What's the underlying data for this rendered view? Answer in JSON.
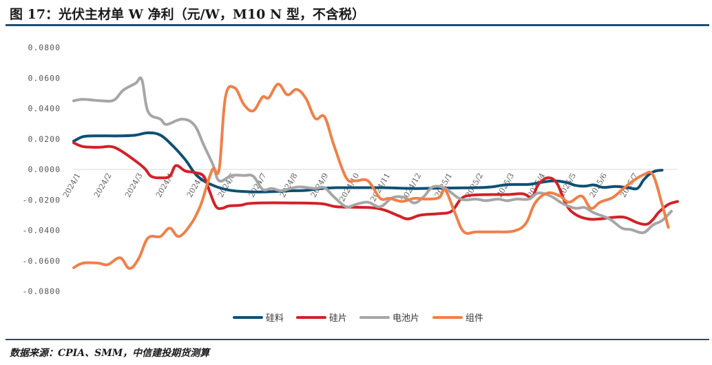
{
  "header": {
    "title": "图 17：光伏主材单 W 净利（元/W，M10 N 型，不含税）"
  },
  "footer": {
    "source": "数据来源：CPIA、SMM，中信建投期货测算"
  },
  "colors": {
    "硅料": "#0f5075",
    "硅片": "#d42027",
    "电池片": "#a6a6a6",
    "组件": "#f08048",
    "rule": "#1f4e79"
  },
  "chart_data": {
    "type": "line",
    "title": "",
    "xlabel": "",
    "ylabel": "",
    "ylim": [
      -0.08,
      0.08
    ],
    "y_ticks": [
      "0.0800",
      "0.0600",
      "0.0400",
      "0.0200",
      "0.0000",
      "-0.0200",
      "-0.0400",
      "-0.0600",
      "-0.0800"
    ],
    "x_ticks": [
      "2024/1",
      "2024/2",
      "2024/3",
      "2024/4",
      "2024/5",
      "2024/6",
      "2024/7",
      "2024/8",
      "2024/9",
      "2024/10",
      "2024/11",
      "2024/12",
      "2025/1",
      "2025/2",
      "2025/3",
      "2025/4",
      "2025/5",
      "2025/6",
      "2025/7"
    ],
    "x_tick_labels": [
      "2024/1",
      "2024/2",
      "2024/3",
      "2024/4",
      "2024/5",
      "2024/6",
      "2024/7",
      "2024/8",
      "2024/9",
      "2024/10",
      "2024/11",
      "2024/12",
      "2025/1",
      "2025/2",
      "2025/3",
      "2025/4",
      "2025/5",
      "2025/6",
      "2025/7"
    ],
    "x_range_months": [
      0,
      18.8
    ],
    "legend_position": "bottom",
    "grid": false,
    "series": [
      {
        "name": "硅料",
        "points": [
          [
            0,
            0.0185
          ],
          [
            0.3,
            0.0215
          ],
          [
            0.7,
            0.022
          ],
          [
            1.5,
            0.022
          ],
          [
            2.0,
            0.0225
          ],
          [
            2.4,
            0.024
          ],
          [
            2.8,
            0.0225
          ],
          [
            3.2,
            0.0155
          ],
          [
            3.6,
            0.0065
          ],
          [
            4.0,
            -0.0045
          ],
          [
            4.5,
            -0.0105
          ],
          [
            5.0,
            -0.0135
          ],
          [
            5.5,
            -0.0145
          ],
          [
            6.0,
            -0.0148
          ],
          [
            6.5,
            -0.0145
          ],
          [
            7.0,
            -0.014
          ],
          [
            7.5,
            -0.0138
          ],
          [
            8.0,
            -0.0125
          ],
          [
            8.5,
            -0.012
          ],
          [
            9.0,
            -0.012
          ],
          [
            10.0,
            -0.012
          ],
          [
            11.0,
            -0.0125
          ],
          [
            12.0,
            -0.0122
          ],
          [
            13.0,
            -0.012
          ],
          [
            13.5,
            -0.0115
          ],
          [
            14.0,
            -0.01
          ],
          [
            14.7,
            -0.0098
          ],
          [
            15.1,
            -0.0085
          ],
          [
            15.5,
            -0.0075
          ],
          [
            15.9,
            -0.0085
          ],
          [
            16.2,
            -0.0105
          ],
          [
            16.5,
            -0.011
          ],
          [
            16.8,
            -0.0102
          ],
          [
            17.1,
            -0.0118
          ],
          [
            17.5,
            -0.0112
          ],
          [
            17.9,
            -0.012
          ],
          [
            18.2,
            -0.0125
          ],
          [
            18.4,
            -0.007
          ],
          [
            18.6,
            -0.003
          ],
          [
            18.8,
            -0.001
          ],
          [
            19.0,
            -0.0005
          ]
        ]
      },
      {
        "name": "硅片",
        "points": [
          [
            0,
            0.0175
          ],
          [
            0.3,
            0.015
          ],
          [
            0.8,
            0.0145
          ],
          [
            1.2,
            0.015
          ],
          [
            1.5,
            0.0125
          ],
          [
            2.0,
            0.0055
          ],
          [
            2.3,
            0.0005
          ],
          [
            2.5,
            -0.0045
          ],
          [
            2.8,
            -0.0055
          ],
          [
            3.1,
            -0.0045
          ],
          [
            3.3,
            0.0025
          ],
          [
            3.6,
            -0.001
          ],
          [
            3.9,
            -0.002
          ],
          [
            4.2,
            -0.0045
          ],
          [
            4.4,
            -0.015
          ],
          [
            4.6,
            -0.0245
          ],
          [
            4.8,
            -0.0255
          ],
          [
            5.0,
            -0.024
          ],
          [
            5.4,
            -0.0235
          ],
          [
            5.6,
            -0.0225
          ],
          [
            6.0,
            -0.022
          ],
          [
            7.0,
            -0.022
          ],
          [
            8.0,
            -0.0225
          ],
          [
            8.5,
            -0.0245
          ],
          [
            9.5,
            -0.025
          ],
          [
            10.0,
            -0.0265
          ],
          [
            10.5,
            -0.0305
          ],
          [
            10.8,
            -0.0325
          ],
          [
            11.2,
            -0.03
          ],
          [
            11.8,
            -0.029
          ],
          [
            12.2,
            -0.0275
          ],
          [
            12.5,
            -0.0195
          ],
          [
            12.8,
            -0.017
          ],
          [
            13.5,
            -0.0165
          ],
          [
            14.0,
            -0.0165
          ],
          [
            14.5,
            -0.016
          ],
          [
            14.8,
            -0.018
          ],
          [
            15.0,
            -0.01
          ],
          [
            15.3,
            -0.0055
          ],
          [
            15.6,
            -0.009
          ],
          [
            15.9,
            -0.023
          ],
          [
            16.2,
            -0.0295
          ],
          [
            16.6,
            -0.0325
          ],
          [
            17.0,
            -0.0325
          ],
          [
            17.4,
            -0.0315
          ],
          [
            17.8,
            -0.0315
          ],
          [
            18.2,
            -0.035
          ],
          [
            18.5,
            -0.036
          ],
          [
            18.7,
            -0.033
          ],
          [
            18.9,
            -0.028
          ],
          [
            19.2,
            -0.023
          ],
          [
            19.5,
            -0.021
          ]
        ]
      },
      {
        "name": "电池片",
        "points": [
          [
            0,
            0.045
          ],
          [
            0.3,
            0.046
          ],
          [
            0.9,
            0.045
          ],
          [
            1.3,
            0.0455
          ],
          [
            1.6,
            0.052
          ],
          [
            2.0,
            0.0565
          ],
          [
            2.2,
            0.059
          ],
          [
            2.4,
            0.038
          ],
          [
            2.8,
            0.033
          ],
          [
            3.0,
            0.0295
          ],
          [
            3.5,
            0.033
          ],
          [
            3.9,
            0.029
          ],
          [
            4.2,
            0.016
          ],
          [
            4.5,
            0.003
          ],
          [
            4.7,
            -0.0075
          ],
          [
            5.1,
            -0.004
          ],
          [
            5.5,
            -0.004
          ],
          [
            5.8,
            -0.0045
          ],
          [
            6.1,
            -0.013
          ],
          [
            6.4,
            -0.0125
          ],
          [
            6.7,
            -0.014
          ],
          [
            7.0,
            -0.0125
          ],
          [
            7.3,
            -0.0115
          ],
          [
            7.8,
            -0.0125
          ],
          [
            8.1,
            -0.012
          ],
          [
            8.4,
            -0.018
          ],
          [
            8.8,
            -0.0245
          ],
          [
            9.1,
            -0.023
          ],
          [
            9.5,
            -0.0215
          ],
          [
            9.9,
            -0.0245
          ],
          [
            10.3,
            -0.0185
          ],
          [
            10.7,
            -0.0185
          ],
          [
            11.0,
            -0.022
          ],
          [
            11.3,
            -0.018
          ],
          [
            11.6,
            -0.0115
          ],
          [
            12.0,
            -0.0125
          ],
          [
            12.5,
            -0.0195
          ],
          [
            13.0,
            -0.0195
          ],
          [
            13.3,
            -0.0205
          ],
          [
            13.7,
            -0.0195
          ],
          [
            14.0,
            -0.0205
          ],
          [
            14.3,
            -0.0195
          ],
          [
            14.7,
            -0.0195
          ],
          [
            15.0,
            -0.0155
          ],
          [
            15.4,
            -0.0175
          ],
          [
            15.8,
            -0.0225
          ],
          [
            16.2,
            -0.0255
          ],
          [
            16.5,
            -0.025
          ],
          [
            16.8,
            -0.0285
          ],
          [
            17.3,
            -0.0325
          ],
          [
            17.7,
            -0.0385
          ],
          [
            18.0,
            -0.0395
          ],
          [
            18.4,
            -0.0415
          ],
          [
            18.7,
            -0.0365
          ],
          [
            19.0,
            -0.0335
          ],
          [
            19.3,
            -0.0275
          ]
        ]
      },
      {
        "name": "组件",
        "points": [
          [
            0,
            -0.0645
          ],
          [
            0.3,
            -0.0615
          ],
          [
            0.8,
            -0.0615
          ],
          [
            1.1,
            -0.0625
          ],
          [
            1.5,
            -0.058
          ],
          [
            1.8,
            -0.065
          ],
          [
            2.1,
            -0.0585
          ],
          [
            2.4,
            -0.045
          ],
          [
            2.8,
            -0.044
          ],
          [
            3.1,
            -0.0385
          ],
          [
            3.4,
            -0.044
          ],
          [
            3.8,
            -0.0355
          ],
          [
            4.1,
            -0.0235
          ],
          [
            4.3,
            -0.0105
          ],
          [
            4.5,
            0.0005
          ],
          [
            4.7,
            0.0005
          ],
          [
            4.9,
            0.0475
          ],
          [
            5.2,
            0.0535
          ],
          [
            5.5,
            0.0425
          ],
          [
            5.8,
            0.0385
          ],
          [
            6.1,
            0.0475
          ],
          [
            6.3,
            0.047
          ],
          [
            6.6,
            0.056
          ],
          [
            6.9,
            0.049
          ],
          [
            7.2,
            0.0525
          ],
          [
            7.5,
            0.0465
          ],
          [
            7.8,
            0.0335
          ],
          [
            8.1,
            0.0345
          ],
          [
            8.4,
            0.016
          ],
          [
            8.8,
            -0.0055
          ],
          [
            9.1,
            -0.0075
          ],
          [
            9.5,
            -0.0075
          ],
          [
            9.9,
            -0.019
          ],
          [
            10.2,
            -0.019
          ],
          [
            10.6,
            -0.021
          ],
          [
            11.0,
            -0.019
          ],
          [
            11.4,
            -0.0195
          ],
          [
            11.8,
            -0.0185
          ],
          [
            12.0,
            -0.0135
          ],
          [
            12.3,
            -0.028
          ],
          [
            12.6,
            -0.041
          ],
          [
            13.0,
            -0.041
          ],
          [
            13.6,
            -0.041
          ],
          [
            14.2,
            -0.0405
          ],
          [
            14.6,
            -0.0355
          ],
          [
            14.9,
            -0.022
          ],
          [
            15.3,
            -0.0155
          ],
          [
            15.7,
            -0.0175
          ],
          [
            16.0,
            -0.0215
          ],
          [
            16.4,
            -0.0175
          ],
          [
            16.7,
            -0.0255
          ],
          [
            17.0,
            -0.0215
          ],
          [
            17.4,
            -0.0185
          ],
          [
            17.7,
            -0.0135
          ],
          [
            18.0,
            -0.0085
          ],
          [
            18.4,
            -0.0035
          ],
          [
            18.7,
            -0.0035
          ],
          [
            19.0,
            -0.023
          ],
          [
            19.2,
            -0.038
          ]
        ]
      }
    ]
  }
}
